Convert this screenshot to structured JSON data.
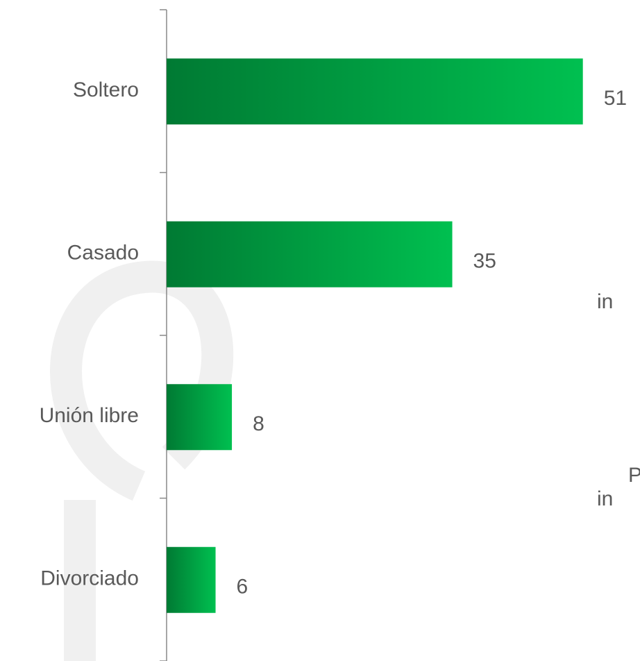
{
  "chart_data": {
    "type": "barh",
    "categories": [
      "Soltero",
      "Casado",
      "Unión libre",
      "Divorciado"
    ],
    "values": [
      51,
      35,
      8,
      6
    ],
    "colors": [
      "#007a33",
      "#00c050"
    ],
    "xlim": [
      0,
      58
    ],
    "annotations": [
      "in",
      "P",
      "in"
    ]
  }
}
